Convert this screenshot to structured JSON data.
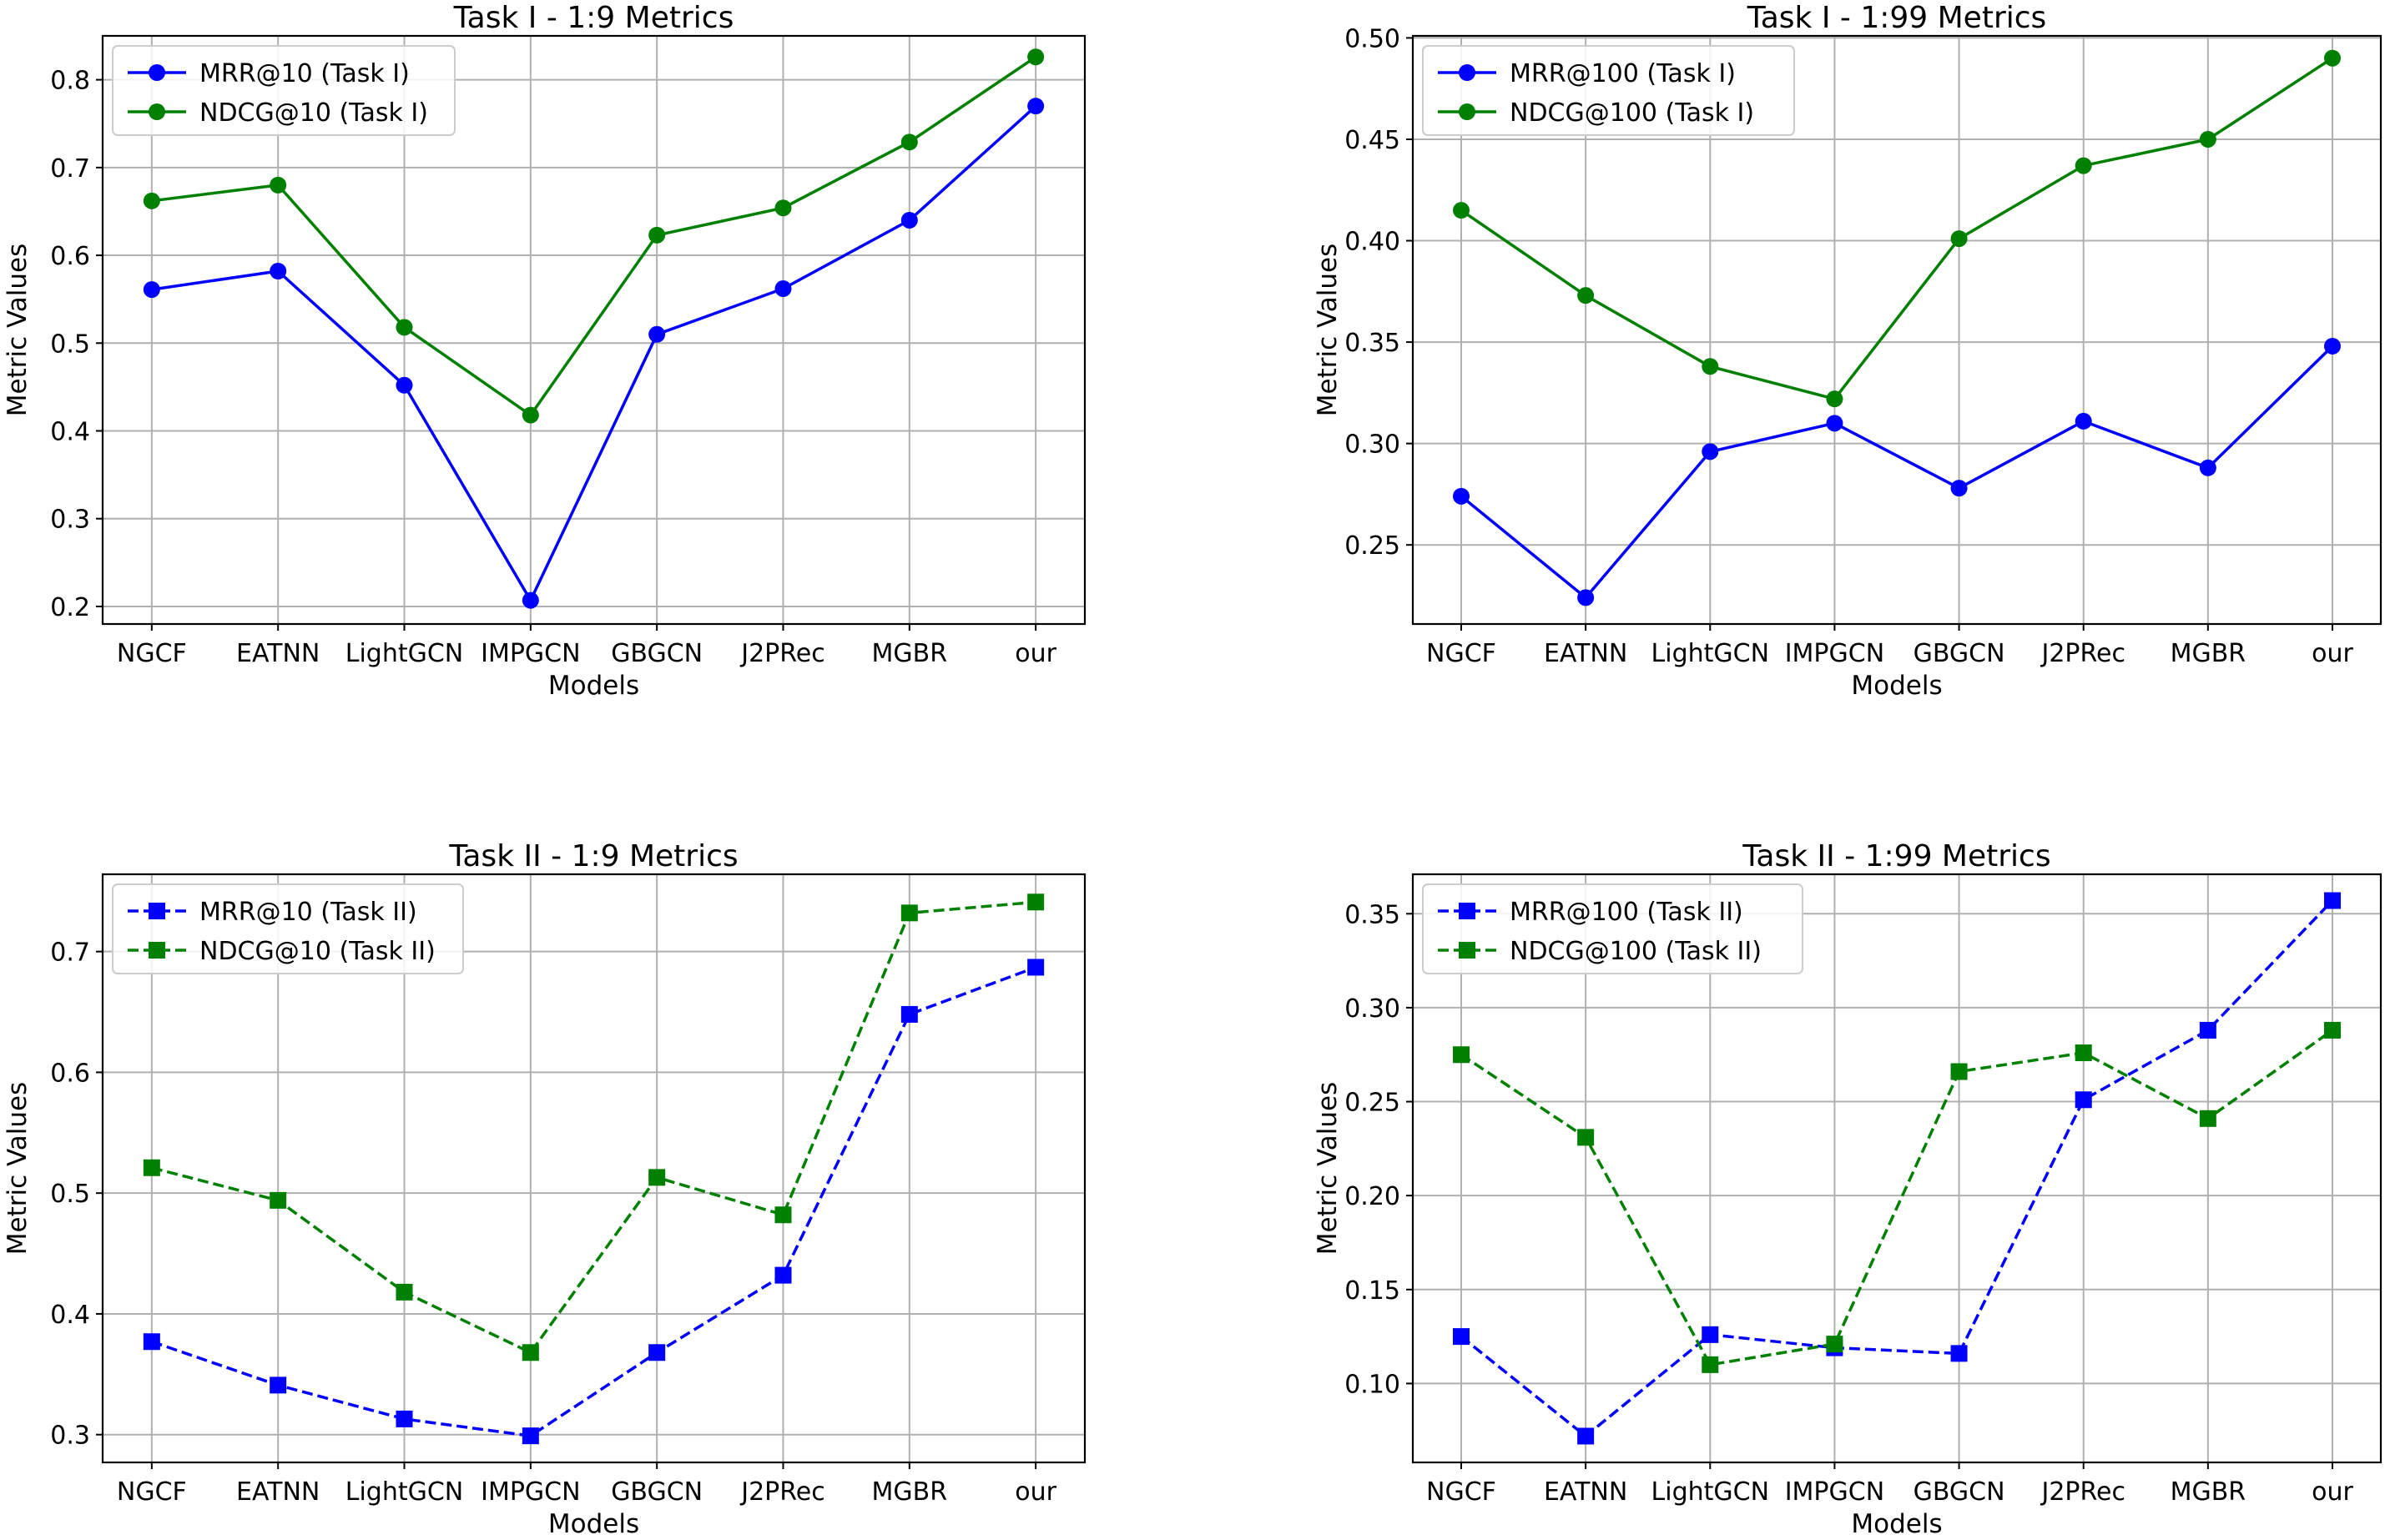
{
  "chart_data": [
    {
      "type": "line",
      "title": "Task I - 1:9 Metrics",
      "xlabel": "Models",
      "ylabel": "Metric Values",
      "categories": [
        "NGCF",
        "EATNN",
        "LightGCN",
        "IMPGCN",
        "GBGCN",
        "J2PRec",
        "MGBR",
        "our"
      ],
      "ylim": [
        0.18,
        0.85
      ],
      "yticks": [
        0.2,
        0.3,
        0.4,
        0.5,
        0.6,
        0.7,
        0.8
      ],
      "ytick_labels": [
        "0.2",
        "0.3",
        "0.4",
        "0.5",
        "0.6",
        "0.7",
        "0.8"
      ],
      "grid": true,
      "legend": "top-left",
      "series": [
        {
          "name": "MRR@10 (Task I)",
          "color": "#0000ff",
          "marker": "circle",
          "linestyle": "solid",
          "values": [
            0.561,
            0.582,
            0.452,
            0.207,
            0.51,
            0.562,
            0.64,
            0.77
          ]
        },
        {
          "name": "NDCG@10 (Task I)",
          "color": "#008000",
          "marker": "circle",
          "linestyle": "solid",
          "values": [
            0.662,
            0.68,
            0.518,
            0.418,
            0.623,
            0.654,
            0.729,
            0.826
          ]
        }
      ]
    },
    {
      "type": "line",
      "title": "Task I - 1:99 Metrics",
      "xlabel": "Models",
      "ylabel": "Metric Values",
      "categories": [
        "NGCF",
        "EATNN",
        "LightGCN",
        "IMPGCN",
        "GBGCN",
        "J2PRec",
        "MGBR",
        "our"
      ],
      "ylim": [
        0.211,
        0.501
      ],
      "yticks": [
        0.25,
        0.3,
        0.35,
        0.4,
        0.45,
        0.5
      ],
      "ytick_labels": [
        "0.25",
        "0.30",
        "0.35",
        "0.40",
        "0.45",
        "0.50"
      ],
      "grid": true,
      "legend": "top-left",
      "series": [
        {
          "name": "MRR@100 (Task I)",
          "color": "#0000ff",
          "marker": "circle",
          "linestyle": "solid",
          "values": [
            0.274,
            0.224,
            0.296,
            0.31,
            0.278,
            0.311,
            0.288,
            0.348
          ]
        },
        {
          "name": "NDCG@100 (Task I)",
          "color": "#008000",
          "marker": "circle",
          "linestyle": "solid",
          "values": [
            0.415,
            0.373,
            0.338,
            0.322,
            0.401,
            0.437,
            0.45,
            0.49
          ]
        }
      ]
    },
    {
      "type": "line",
      "title": "Task II - 1:9 Metrics",
      "xlabel": "Models",
      "ylabel": "Metric Values",
      "categories": [
        "NGCF",
        "EATNN",
        "LightGCN",
        "IMPGCN",
        "GBGCN",
        "J2PRec",
        "MGBR",
        "our"
      ],
      "ylim": [
        0.277,
        0.764
      ],
      "yticks": [
        0.3,
        0.4,
        0.5,
        0.6,
        0.7
      ],
      "ytick_labels": [
        "0.3",
        "0.4",
        "0.5",
        "0.6",
        "0.7"
      ],
      "grid": true,
      "legend": "top-left",
      "series": [
        {
          "name": "MRR@10 (Task II)",
          "color": "#0000ff",
          "marker": "square",
          "linestyle": "dashed",
          "values": [
            0.377,
            0.341,
            0.313,
            0.299,
            0.368,
            0.432,
            0.648,
            0.687
          ]
        },
        {
          "name": "NDCG@10 (Task II)",
          "color": "#008000",
          "marker": "square",
          "linestyle": "dashed",
          "values": [
            0.521,
            0.494,
            0.418,
            0.368,
            0.513,
            0.482,
            0.732,
            0.741
          ]
        }
      ]
    },
    {
      "type": "line",
      "title": "Task II - 1:99 Metrics",
      "xlabel": "Models",
      "ylabel": "Metric Values",
      "categories": [
        "NGCF",
        "EATNN",
        "LightGCN",
        "IMPGCN",
        "GBGCN",
        "J2PRec",
        "MGBR",
        "our"
      ],
      "ylim": [
        0.058,
        0.371
      ],
      "yticks": [
        0.1,
        0.15,
        0.2,
        0.25,
        0.3,
        0.35
      ],
      "ytick_labels": [
        "0.10",
        "0.15",
        "0.20",
        "0.25",
        "0.30",
        "0.35"
      ],
      "grid": true,
      "legend": "top-left",
      "series": [
        {
          "name": "MRR@100 (Task II)",
          "color": "#0000ff",
          "marker": "square",
          "linestyle": "dashed",
          "values": [
            0.125,
            0.072,
            0.126,
            0.119,
            0.116,
            0.251,
            0.288,
            0.357
          ]
        },
        {
          "name": "NDCG@100 (Task II)",
          "color": "#008000",
          "marker": "square",
          "linestyle": "dashed",
          "values": [
            0.275,
            0.231,
            0.11,
            0.121,
            0.266,
            0.276,
            0.241,
            0.288
          ]
        }
      ]
    }
  ]
}
